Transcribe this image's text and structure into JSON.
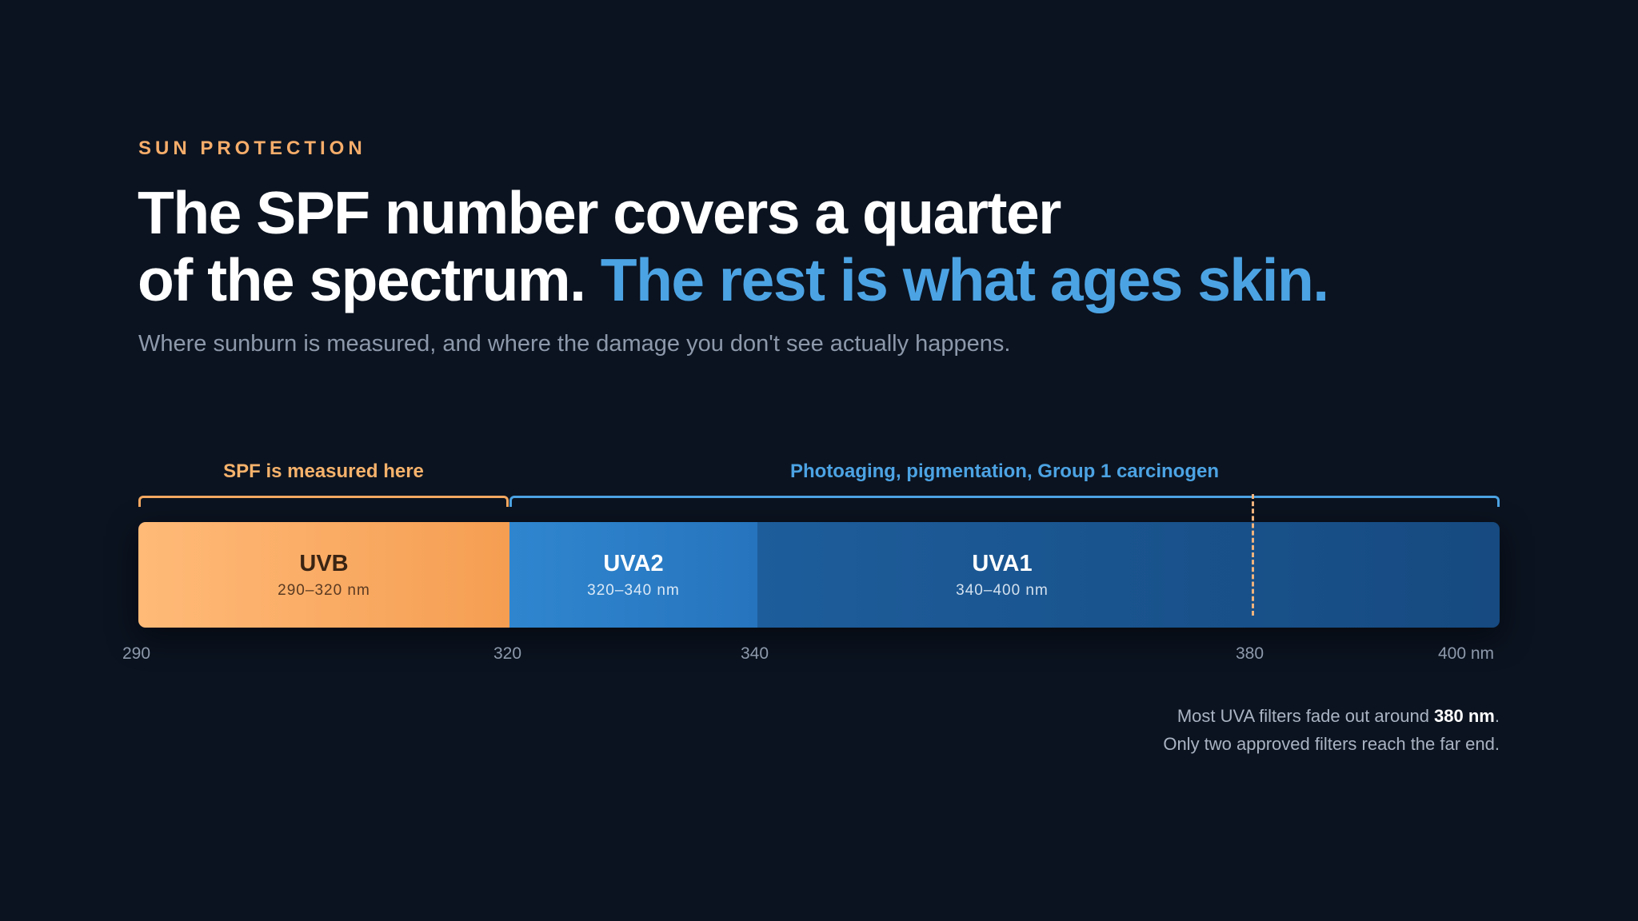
{
  "header": {
    "eyebrow": "SUN PROTECTION",
    "headline_line1": "The SPF number covers a quarter",
    "headline_line2_plain": "of the spectrum. ",
    "headline_line2_accent": "The rest is what ages skin.",
    "subtitle": "Where sunburn is measured, and where the damage you don't see actually happens."
  },
  "brackets": {
    "spf_label": "SPF is measured here",
    "aging_label": "Photoaging, pigmentation, Group 1 carcinogen"
  },
  "chart_data": {
    "type": "spectrum-band",
    "unit": "nm",
    "range": [
      290,
      400
    ],
    "segments": [
      {
        "name": "UVB",
        "start": 290,
        "end": 320,
        "label": "290–320 nm",
        "color": "#f6a55c"
      },
      {
        "name": "UVA2",
        "start": 320,
        "end": 340,
        "label": "320–340 nm",
        "color": "#2a7dc6"
      },
      {
        "name": "UVA1",
        "start": 340,
        "end": 400,
        "label": "340–400 nm",
        "color": "#1a5590"
      }
    ],
    "marker": 380,
    "ticks": [
      "290",
      "320",
      "340",
      "380",
      "400 nm"
    ]
  },
  "note": {
    "line1_prefix": "Most UVA filters fade out around ",
    "line1_value": "380 nm",
    "line1_suffix": ".",
    "line2": "Only two approved filters reach the far end."
  },
  "colors": {
    "background": "#0b1320",
    "uvb_accent": "#f4a861",
    "uva_accent": "#4ca3e3",
    "marker": "#f0b37d"
  }
}
